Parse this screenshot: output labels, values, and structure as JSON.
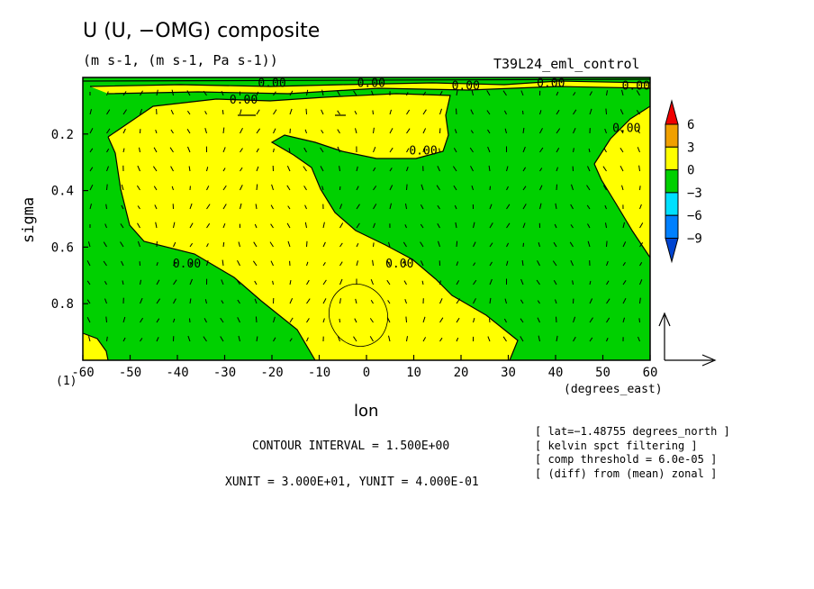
{
  "chart_data": {
    "type": "contour",
    "title": "U (U, −OMG) composite",
    "subtitle": "(m s-1, (m s-1, Pa s-1))",
    "run_name": "T39L24_eml_control",
    "xlabel": "lon",
    "x_units_label": "(degrees_east)",
    "ylabel": "sigma",
    "page_marker": "(1)",
    "xlim": [
      -60,
      60
    ],
    "ylim": [
      1.0,
      0.0
    ],
    "x_ticks": [
      -60,
      -50,
      -40,
      -30,
      -20,
      -10,
      0,
      10,
      20,
      30,
      40,
      50,
      60
    ],
    "y_ticks": [
      0.2,
      0.4,
      0.6,
      0.8
    ],
    "contour_labels": [
      {
        "text": "0.00",
        "lon": -26,
        "sigma": 0.08
      },
      {
        "text": "0.00",
        "lon": -38,
        "sigma": 0.66
      },
      {
        "text": "0.00",
        "lon": 7,
        "sigma": 0.66
      },
      {
        "text": "0.00",
        "lon": 12,
        "sigma": 0.26
      },
      {
        "text": "0.00",
        "lon": 55,
        "sigma": 0.18
      },
      {
        "text": "0.00",
        "lon": -20,
        "sigma": 0.02
      },
      {
        "text": "0.00",
        "lon": 1,
        "sigma": 0.02
      },
      {
        "text": "0.00",
        "lon": 21,
        "sigma": 0.03
      },
      {
        "text": "0.00",
        "lon": 39,
        "sigma": 0.02
      },
      {
        "text": "0.00",
        "lon": 57,
        "sigma": 0.03
      }
    ],
    "colorbar": {
      "levels": [
        6,
        3,
        0,
        -3,
        -6,
        -9
      ],
      "colors": [
        "#f00000",
        "#f0a000",
        "#ffff00",
        "#00d000",
        "#00e0ff",
        "#0080ff",
        "#0044d0"
      ]
    },
    "fill_colors": {
      "positive": "#ffff00",
      "negative": "#00d000"
    },
    "contour_interval_text": "CONTOUR INTERVAL = 1.500E+00",
    "units_text": "XUNIT = 3.000E+01, YUNIT = 4.000E-01",
    "info": [
      "[ lat=−1.48755 degrees_north ]",
      "[ kelvin spct filtering ]",
      "[ comp threshold = 6.0e-05 ]",
      "[ (diff) from (mean) zonal ]"
    ]
  }
}
